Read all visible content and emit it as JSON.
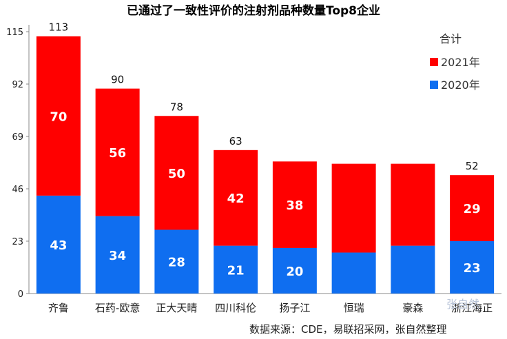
{
  "chart_data": {
    "type": "bar",
    "stacked": true,
    "title": "已通过了一致性评价的注射剂品种数量Top8企业",
    "categories": [
      "齐鲁",
      "石药-欧意",
      "正大天晴",
      "四川科伦",
      "扬子江",
      "恒瑞",
      "豪森",
      "浙江海正"
    ],
    "series": [
      {
        "name": "2020年",
        "color": "#0f6ef0",
        "values": [
          43,
          34,
          28,
          21,
          20,
          18,
          21,
          23
        ],
        "labels": [
          "43",
          "34",
          "28",
          "21",
          "20",
          "",
          "",
          "23"
        ]
      },
      {
        "name": "2021年",
        "color": "#ff0000",
        "values": [
          70,
          56,
          50,
          42,
          38,
          39,
          36,
          29
        ],
        "labels": [
          "70",
          "56",
          "50",
          "42",
          "38",
          "",
          "",
          "29"
        ]
      }
    ],
    "totals_labels": [
      "113",
      "90",
      "78",
      "63",
      "",
      "",
      "",
      "52"
    ],
    "ylim": [
      0,
      115
    ],
    "yticks": [
      "0",
      "23",
      "46",
      "69",
      "92",
      "115"
    ],
    "legend_title": "合计",
    "legend_position": "top-right",
    "grid": false
  },
  "source_note": "数据来源：CDE，易联招采网，张自然整理",
  "watermark": "张自然"
}
